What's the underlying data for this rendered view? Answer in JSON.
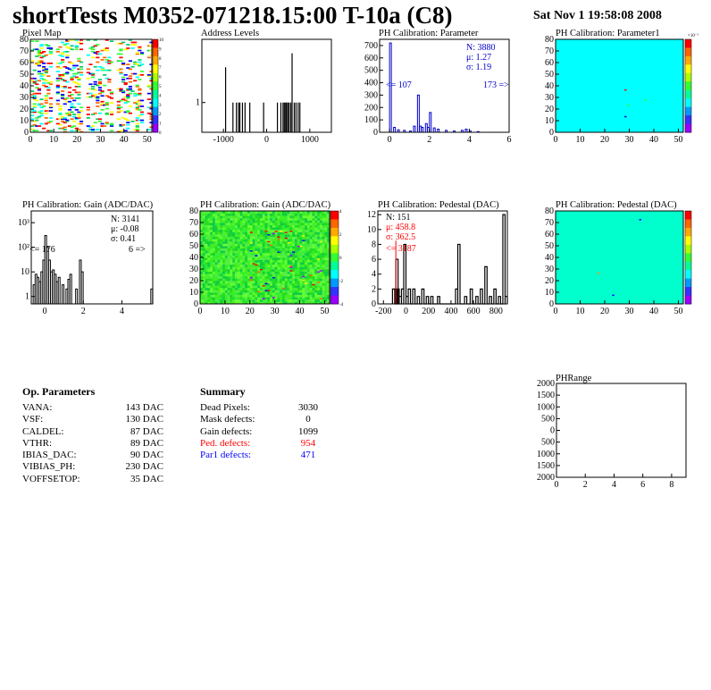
{
  "header": {
    "title": "shortTests M0352-071218.15:00 T-10a (C8)",
    "date": "Sat Nov  1 19:58:08 2008"
  },
  "panels": {
    "pixel_map": {
      "title": "Pixel Map",
      "x_ticks": [
        "0",
        "10",
        "20",
        "30",
        "40",
        "50"
      ],
      "y_ticks": [
        "0",
        "10",
        "20",
        "30",
        "40",
        "50",
        "60",
        "70",
        "80"
      ],
      "palette_ticks": [
        "10",
        "9",
        "8",
        "7",
        "6",
        "5",
        "4",
        "3",
        "2",
        "1",
        "0"
      ]
    },
    "address_levels": {
      "title": "Address Levels",
      "x_ticks": [
        "-1000",
        "0",
        "1000"
      ],
      "y_ticks": [
        "1"
      ]
    },
    "ph_param": {
      "title": "PH Calibration: Parameter",
      "stats": [
        "N: 3880",
        "μ: 1.27",
        "σ: 1.19"
      ],
      "under": "<= 107",
      "over": "173 =>",
      "x_ticks": [
        "0",
        "2",
        "4",
        "6"
      ],
      "y_ticks": [
        "0",
        "100",
        "200",
        "300",
        "400",
        "500",
        "600",
        "700"
      ]
    },
    "ph_param1": {
      "title": "PH Calibration: Parameter1",
      "x_ticks": [
        "0",
        "10",
        "20",
        "30",
        "40",
        "50"
      ],
      "y_ticks": [
        "0",
        "10",
        "20",
        "30",
        "40",
        "50",
        "60",
        "70",
        "80"
      ],
      "exp_label": "×10⁻¹",
      "palette_ticks": [
        "",
        "",
        "",
        "",
        "",
        "",
        "",
        "",
        ""
      ]
    },
    "gain_hist": {
      "title": "PH Calibration: Gain (ADC/DAC)",
      "stats": [
        "N: 3141",
        "μ: -0.08",
        "σ: 0.41"
      ],
      "under": "<= 176",
      "over": "6 =>",
      "x_ticks": [
        "0",
        "2",
        "4"
      ],
      "y_ticks": [
        "1",
        "10",
        "10²",
        "10³"
      ]
    },
    "gain_map": {
      "title": "PH Calibration: Gain (ADC/DAC)",
      "x_ticks": [
        "0",
        "10",
        "20",
        "30",
        "40",
        "50"
      ],
      "y_ticks": [
        "0",
        "10",
        "20",
        "30",
        "40",
        "50",
        "60",
        "70",
        "80"
      ],
      "palette_ticks": [
        "4",
        "2",
        "0",
        "-2",
        "-4"
      ]
    },
    "ped_hist": {
      "title": "PH Calibration: Pedestal (DAC)",
      "stats": [
        "N:  151",
        "μ: 458.8",
        "σ: 362.5"
      ],
      "under": "<= 3187",
      "x_ticks": [
        "-200",
        "0",
        "200",
        "400",
        "600",
        "800"
      ],
      "y_ticks": [
        "0",
        "2",
        "4",
        "6",
        "8",
        "10",
        "12"
      ]
    },
    "ped_map": {
      "title": "PH Calibration: Pedestal (DAC)",
      "x_ticks": [
        "0",
        "10",
        "20",
        "30",
        "40",
        "50"
      ],
      "y_ticks": [
        "0",
        "10",
        "20",
        "30",
        "40",
        "50",
        "60",
        "70",
        "80"
      ],
      "palette_ticks": [
        "",
        "",
        "",
        "",
        "",
        "",
        "",
        ""
      ]
    },
    "phrange": {
      "title": "PHRange",
      "x_ticks": [
        "0",
        "2",
        "4",
        "6",
        "8"
      ],
      "y_ticks": [
        "2000",
        "1500",
        "1000",
        "500",
        "0",
        "500",
        "1000",
        "1500",
        "2000"
      ]
    }
  },
  "op_params": {
    "heading": "Op. Parameters",
    "rows": [
      {
        "name": "VANA:",
        "value": "143 DAC"
      },
      {
        "name": "VSF:",
        "value": "130 DAC"
      },
      {
        "name": "CALDEL:",
        "value": "87 DAC"
      },
      {
        "name": "VTHR:",
        "value": "89 DAC"
      },
      {
        "name": "IBIAS_DAC:",
        "value": "90 DAC"
      },
      {
        "name": "VIBIAS_PH:",
        "value": "230 DAC"
      },
      {
        "name": "VOFFSETOP:",
        "value": "35 DAC"
      }
    ]
  },
  "summary": {
    "heading": "Summary",
    "rows": [
      {
        "name": "Dead Pixels:",
        "value": "3030",
        "color": "#000000"
      },
      {
        "name": "Mask defects:",
        "value": "0",
        "color": "#000000"
      },
      {
        "name": "Gain defects:",
        "value": "1099",
        "color": "#000000"
      },
      {
        "name": "Ped. defects:",
        "value": "954",
        "color": "#ff0000"
      },
      {
        "name": "Par1 defects:",
        "value": "471",
        "color": "#0000ff"
      }
    ]
  },
  "chart_data": [
    {
      "type": "heatmap",
      "title": "Pixel Map",
      "xlim": [
        0,
        52
      ],
      "ylim": [
        0,
        80
      ],
      "zlim": [
        0,
        10
      ]
    },
    {
      "type": "bar",
      "title": "Address Levels",
      "xlim": [
        -1500,
        1500
      ],
      "x": [
        -950,
        -780,
        -700,
        -650,
        -620,
        -560,
        -500,
        -390,
        -70,
        250,
        330,
        380,
        410,
        440,
        460,
        490,
        520,
        560,
        590,
        640,
        680,
        730,
        770
      ],
      "values": [
        0.7,
        0.32,
        0.32,
        0.32,
        0.32,
        0.32,
        0.32,
        0.32,
        0.32,
        0.32,
        0.32,
        0.32,
        0.32,
        0.32,
        0.32,
        0.32,
        0.32,
        0.32,
        0.85,
        0.32,
        0.32,
        0.32,
        0.32
      ]
    },
    {
      "type": "bar",
      "title": "PH Calibration: Parameter",
      "xlim": [
        -0.5,
        6
      ],
      "ylim": [
        0,
        750
      ],
      "x": [
        0,
        0.2,
        0.4,
        0.7,
        1.0,
        1.2,
        1.4,
        1.5,
        1.6,
        1.8,
        1.9,
        2.0,
        2.2,
        2.4,
        2.8,
        3.2,
        3.6,
        3.8,
        4.0,
        4.4
      ],
      "values": [
        720,
        40,
        20,
        15,
        10,
        50,
        300,
        50,
        40,
        70,
        40,
        160,
        35,
        25,
        15,
        10,
        15,
        25,
        10,
        5
      ]
    },
    {
      "type": "heatmap",
      "title": "PH Calibration: Parameter1",
      "xlim": [
        0,
        52
      ],
      "ylim": [
        0,
        80
      ]
    },
    {
      "type": "bar",
      "title": "PH Calibration: Gain (ADC/DAC)",
      "log_y": true,
      "xlim": [
        -0.7,
        5.6
      ],
      "ylim": [
        0.5,
        3000
      ],
      "x": [
        -0.6,
        -0.5,
        -0.4,
        -0.3,
        -0.2,
        -0.1,
        0.0,
        0.1,
        0.2,
        0.3,
        0.4,
        0.5,
        0.6,
        0.7,
        0.9,
        1.1,
        1.2,
        1.3,
        1.6,
        1.8,
        1.9,
        5.5
      ],
      "values": [
        3,
        8,
        6,
        4,
        10,
        30,
        300,
        100,
        30,
        10,
        12,
        8,
        4,
        6,
        3,
        2,
        5,
        8,
        2,
        30,
        10,
        2
      ]
    },
    {
      "type": "heatmap",
      "title": "PH Calibration: Gain (ADC/DAC)",
      "xlim": [
        0,
        52
      ],
      "ylim": [
        0,
        80
      ],
      "zlim": [
        -5,
        5
      ]
    },
    {
      "type": "bar",
      "title": "PH Calibration: Pedestal (DAC)",
      "xlim": [
        -250,
        900
      ],
      "ylim": [
        0,
        12.5
      ],
      "x": [
        -120,
        -100,
        -90,
        -80,
        -60,
        -40,
        -20,
        0,
        20,
        60,
        100,
        140,
        180,
        220,
        280,
        440,
        460,
        520,
        570,
        620,
        660,
        700,
        740,
        780,
        820,
        860,
        880
      ],
      "values": [
        2,
        2,
        6,
        2,
        1,
        2,
        8,
        1,
        2,
        2,
        1,
        2,
        1,
        1,
        1,
        2,
        8,
        1,
        2,
        1,
        2,
        5,
        1,
        2,
        1,
        12,
        1
      ]
    },
    {
      "type": "heatmap",
      "title": "PH Calibration: Pedestal (DAC)",
      "xlim": [
        0,
        52
      ],
      "ylim": [
        0,
        80
      ]
    },
    {
      "type": "scatter",
      "title": "PHRange",
      "xlim": [
        0,
        9
      ],
      "ylim": [
        -2000,
        2000
      ],
      "x": [],
      "y": []
    }
  ]
}
